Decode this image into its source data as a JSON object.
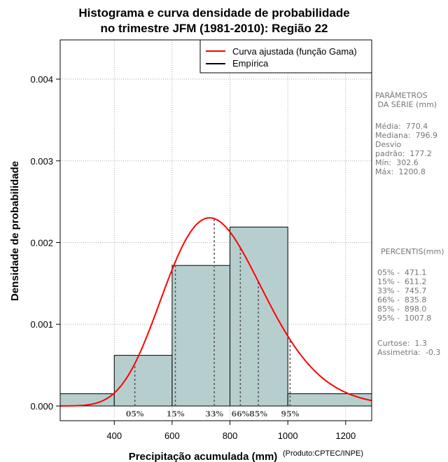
{
  "chart_data": {
    "type": "histogram",
    "title_lines": [
      "Histograma e curva densidade de probabilidade",
      "no trimestre JFM (1981-2010): Região 22"
    ],
    "xlabel": "Precipitação acumulada (mm)",
    "xlabel_suffix": "(Produto:CPTEC/INPE)",
    "ylabel": "Densidade de probabilidade",
    "xlim": [
      213,
      1290
    ],
    "ylim": [
      -0.00018,
      0.00448
    ],
    "x_ticks": [
      400,
      600,
      800,
      1000,
      1200
    ],
    "x_tick_labels": [
      "400",
      "600",
      "800",
      "1000",
      "1200"
    ],
    "y_ticks": [
      0,
      0.001,
      0.002,
      0.003,
      0.004
    ],
    "y_tick_labels": [
      "0.000",
      "0.001",
      "0.002",
      "0.003",
      "0.004"
    ],
    "bins": [
      {
        "x0": 200,
        "x1": 400,
        "density": 0.00015
      },
      {
        "x0": 400,
        "x1": 600,
        "density": 0.00062
      },
      {
        "x0": 600,
        "x1": 800,
        "density": 0.00172
      },
      {
        "x0": 800,
        "x1": 1000,
        "density": 0.00219
      },
      {
        "x0": 1000,
        "x1": 1300,
        "density": 0.00015
      }
    ],
    "gamma_fit": {
      "mean": 770.4,
      "sd": 177.2
    },
    "percentile_markers": [
      {
        "label": "05%",
        "value": 471.1
      },
      {
        "label": "15%",
        "value": 611.2
      },
      {
        "label": "33%",
        "value": 745.7
      },
      {
        "label": "66%",
        "value": 835.8
      },
      {
        "label": "85%",
        "value": 898.0
      },
      {
        "label": "95%",
        "value": 1007.8
      }
    ],
    "legend": [
      {
        "label": "Curva ajustada (função Gama)",
        "color": "#ff0000"
      },
      {
        "label": "Empírica",
        "color": "#000000"
      }
    ],
    "colors": {
      "bar_fill": "#b6cfce",
      "curve": "#ff0000",
      "grid": "#aaaaaa",
      "marker": "#555555"
    }
  },
  "side_panel": {
    "params_header": "PARÂMETROS\n DA SÉRIE (mm)",
    "params_body": "Média:  770.4\nMediana:  796.9\nDesvio\npadrão:  177.2\nMín:  302.6\nMáx:  1200.8",
    "percentis_header": "PERCENTIS(mm)",
    "percentis_body": "05% -  471.1\n15% -  611.2\n33% -  745.7\n66% -  835.8\n85% -  898.0\n95% -  1007.8",
    "stats_body": "Curtose:  1.3\nAssimetria:  -0.3"
  }
}
